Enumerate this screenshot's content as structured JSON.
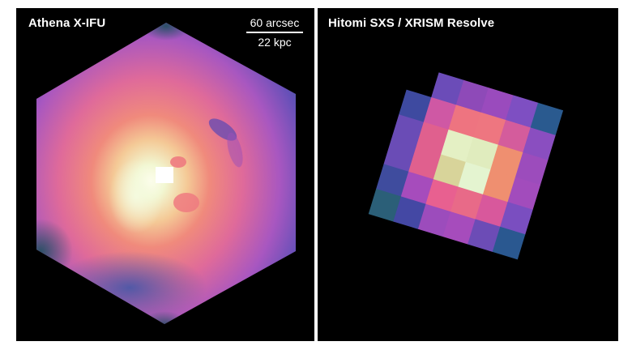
{
  "figure": {
    "left_panel": {
      "title": "Athena X-IFU",
      "scalebar": {
        "top_label": "60 arcsec",
        "bottom_label": "22 kpc"
      },
      "colormap": "magma-like (dark teal → blue → purple → magenta → pink → orange → pale yellow-green → white)",
      "description": "Hexagonal simulated X-ray surface brightness map of a galaxy cluster core with bright central point source and cavity features"
    },
    "right_panel": {
      "title": "Hitomi SXS / XRISM Resolve",
      "description": "Coarse 6x6 pixel grid (one corner pixel missing), rotated ~17°, same cluster core at low angular resolution",
      "grid": [
        [
          null,
          "#6b4cb8",
          "#8e4ab8",
          "#9a4bbd",
          "#7e4fc2",
          "#2a5a8f"
        ],
        [
          "#3e4aa0",
          "#cf58a4",
          "#ee7480",
          "#ee7680",
          "#d45c9c",
          "#8a4ec0"
        ],
        [
          "#6a4cb6",
          "#e0608e",
          "#e4f0c4",
          "#e0ecbe",
          "#ef8f70",
          "#9c4cbc"
        ],
        [
          "#6a4cb6",
          "#e0608e",
          "#d8d49a",
          "#e4f4d0",
          "#ef8f70",
          "#a24cbc"
        ],
        [
          "#3f4c9e",
          "#a64cbc",
          "#e86090",
          "#e86a88",
          "#d8589c",
          "#7a4ec0"
        ],
        [
          "#2b5f78",
          "#4448a4",
          "#9c4cbc",
          "#a64cbc",
          "#6c4cb6",
          "#2a5890"
        ]
      ]
    },
    "colors": {
      "background": "#000000",
      "text": "#ffffff",
      "frame": "#ffffff"
    }
  }
}
